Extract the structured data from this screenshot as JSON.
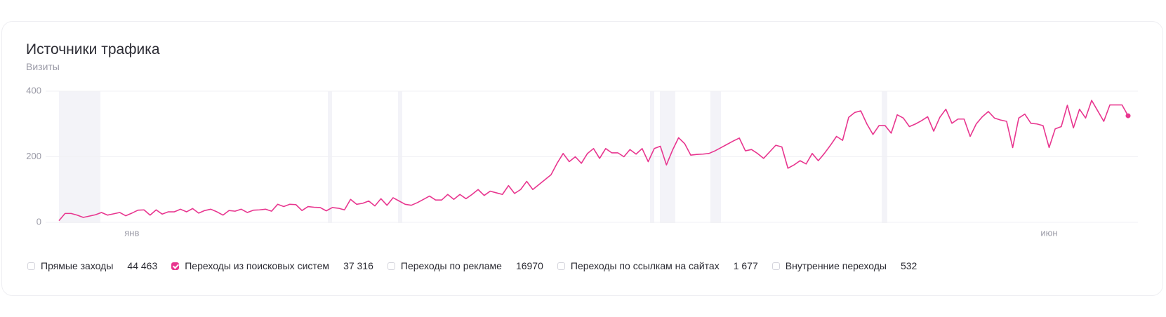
{
  "chart_data": {
    "type": "line",
    "title": "Источники трафика",
    "subtitle": "Визиты",
    "color": "#e8368f",
    "categories": [
      null,
      null,
      null,
      null,
      null,
      null,
      null,
      null,
      null,
      null,
      null,
      null,
      "янв",
      null,
      null,
      null,
      null,
      null,
      null,
      null,
      null,
      null,
      null,
      null,
      null,
      null,
      null,
      null,
      null,
      null,
      null,
      null,
      null,
      null,
      null,
      null,
      null,
      null,
      null,
      null,
      null,
      null,
      null,
      null,
      null,
      null,
      null,
      null,
      null,
      null,
      null,
      null,
      null,
      null,
      null,
      null,
      null,
      null,
      null,
      null,
      null,
      null,
      null,
      null,
      null,
      null,
      null,
      null,
      null,
      null,
      null,
      null,
      null,
      null,
      null,
      null,
      null,
      null,
      null,
      null,
      null,
      null,
      null,
      null,
      null,
      null,
      null,
      null,
      null,
      null,
      null,
      null,
      null,
      null,
      null,
      null,
      null,
      null,
      null,
      null,
      null,
      null,
      null,
      null,
      null,
      null,
      null,
      null,
      null,
      null,
      null,
      null,
      null,
      null,
      null,
      null,
      null,
      null,
      null,
      null,
      null,
      null,
      null,
      null,
      null,
      null,
      null,
      null,
      null,
      null,
      null,
      null,
      null,
      null,
      null,
      null,
      null,
      null,
      null,
      null,
      null,
      null,
      null,
      null,
      null,
      null,
      null,
      null,
      null,
      null,
      null,
      null,
      null,
      null,
      null,
      null,
      null,
      null,
      null,
      null,
      null,
      null,
      null,
      "июн",
      null,
      null,
      null,
      null,
      null,
      null,
      null,
      null,
      null,
      null,
      null,
      null,
      null
    ],
    "values": [
      5,
      27,
      27,
      22,
      15,
      19,
      23,
      30,
      22,
      26,
      30,
      20,
      28,
      37,
      38,
      22,
      38,
      25,
      32,
      32,
      40,
      32,
      42,
      28,
      36,
      40,
      32,
      22,
      36,
      34,
      40,
      30,
      37,
      38,
      40,
      34,
      55,
      48,
      55,
      54,
      36,
      48,
      46,
      45,
      35,
      45,
      43,
      38,
      70,
      55,
      58,
      65,
      50,
      72,
      52,
      75,
      65,
      55,
      52,
      60,
      70,
      80,
      68,
      68,
      85,
      70,
      85,
      72,
      85,
      100,
      82,
      95,
      90,
      85,
      112,
      88,
      100,
      125,
      100,
      115,
      130,
      145,
      180,
      210,
      185,
      200,
      180,
      210,
      225,
      195,
      225,
      212,
      212,
      200,
      222,
      208,
      225,
      185,
      225,
      232,
      175,
      220,
      258,
      240,
      205,
      207,
      208,
      210,
      218,
      228,
      238,
      248,
      257,
      218,
      222,
      210,
      195,
      215,
      235,
      230,
      165,
      175,
      188,
      178,
      210,
      188,
      210,
      235,
      262,
      250,
      320,
      335,
      340,
      300,
      268,
      295,
      295,
      272,
      328,
      318,
      292,
      300,
      310,
      322,
      278,
      320,
      345,
      302,
      315,
      315,
      262,
      300,
      322,
      338,
      318,
      312,
      308,
      228,
      318,
      330,
      302,
      300,
      295,
      228,
      285,
      292,
      357,
      288,
      345,
      318,
      372,
      340,
      308,
      358,
      358,
      358,
      325
    ],
    "ylim": [
      0,
      400
    ],
    "yticks": [
      0,
      200,
      400
    ],
    "grid": true,
    "legend": [
      {
        "label": "Прямые заходы",
        "total": "44 463",
        "checked": false
      },
      {
        "label": "Переходы из поисковых систем",
        "total": "37 316",
        "checked": true
      },
      {
        "label": "Переходы по рекламе",
        "total": "16970",
        "checked": false
      },
      {
        "label": "Переходы по ссылкам на сайтах",
        "total": "1 677",
        "checked": false
      },
      {
        "label": "Внутренние переходы",
        "total": "532",
        "checked": false
      }
    ]
  }
}
